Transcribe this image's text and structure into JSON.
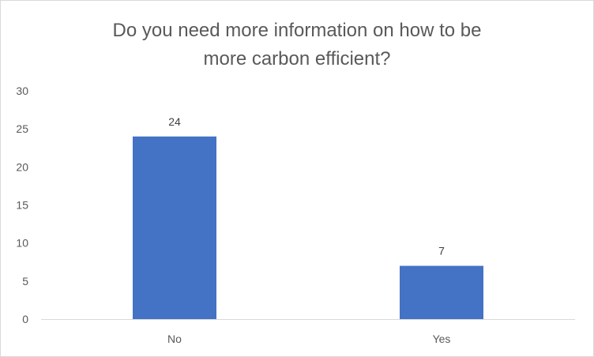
{
  "chart_data": {
    "type": "bar",
    "title": "Do you need more information on how to be\nmore carbon efficient?",
    "categories": [
      "No",
      "Yes"
    ],
    "values": [
      24,
      7
    ],
    "data_labels": [
      "24",
      "7"
    ],
    "ylim": [
      0,
      30
    ],
    "yticks": [
      0,
      5,
      10,
      15,
      20,
      25,
      30
    ],
    "ytick_labels": [
      "0",
      "5",
      "10",
      "15",
      "20",
      "25",
      "30"
    ],
    "xlabel": "",
    "ylabel": "",
    "grid": false,
    "legend": "none",
    "bar_color": "#4472C4",
    "axis_color": "#d9d9d9",
    "text_color": "#595959"
  }
}
